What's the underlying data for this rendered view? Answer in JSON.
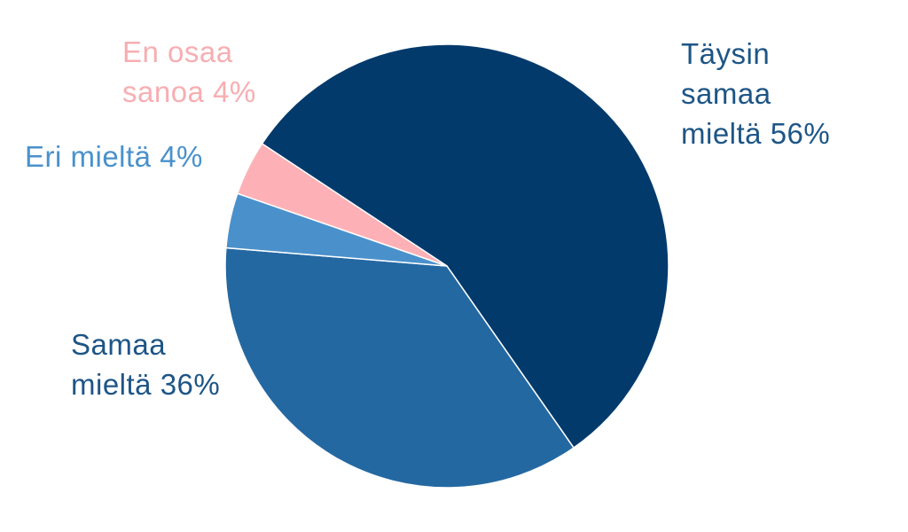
{
  "chart_data": {
    "type": "pie",
    "title": "",
    "slices": [
      {
        "label_lines": [
          "Täysin",
          "samaa",
          "mieltä 56%"
        ],
        "value": 56,
        "color": "#023a6c",
        "text_color": "#1d5586"
      },
      {
        "label_lines": [
          "Samaa",
          "mieltä 36%"
        ],
        "value": 36,
        "color": "#2468a2",
        "text_color": "#1d5586"
      },
      {
        "label_lines": [
          "Eri mieltä 4%"
        ],
        "value": 4,
        "color": "#4a91cc",
        "text_color": "#4a91cc"
      },
      {
        "label_lines": [
          "En osaa",
          "sanoa 4%"
        ],
        "value": 4,
        "color": "#fdb1b6",
        "text_color": "#f7aeb2"
      }
    ]
  }
}
